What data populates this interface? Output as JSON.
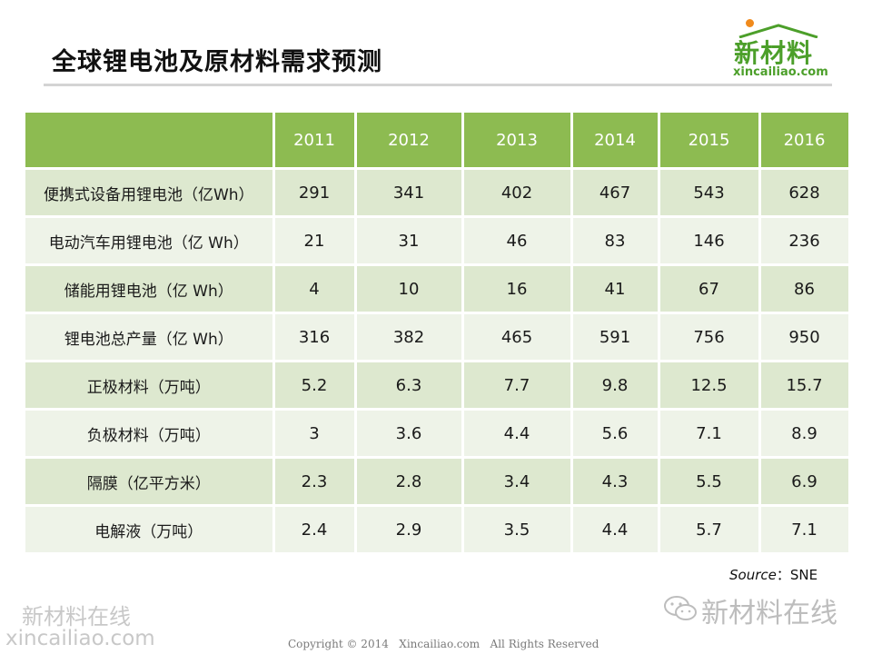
{
  "header": {
    "title": "全球锂电池及原材料需求预测"
  },
  "logo": {
    "text_cn": "新材料",
    "text_en": "xincailiao.com"
  },
  "table": {
    "columns": [
      "",
      "2011",
      "2012",
      "2013",
      "2014",
      "2015",
      "2016"
    ],
    "rows": [
      {
        "label": "便携式设备用锂电池（亿Wh）",
        "values": [
          "291",
          "341",
          "402",
          "467",
          "543",
          "628"
        ]
      },
      {
        "label": "电动汽车用锂电池（亿 Wh）",
        "values": [
          "21",
          "31",
          "46",
          "83",
          "146",
          "236"
        ]
      },
      {
        "label": "储能用锂电池（亿 Wh）",
        "values": [
          "4",
          "10",
          "16",
          "41",
          "67",
          "86"
        ]
      },
      {
        "label": "锂电池总产量（亿 Wh）",
        "values": [
          "316",
          "382",
          "465",
          "591",
          "756",
          "950"
        ]
      },
      {
        "label": "正极材料（万吨）",
        "values": [
          "5.2",
          "6.3",
          "7.7",
          "9.8",
          "12.5",
          "15.7"
        ]
      },
      {
        "label": "负极材料（万吨）",
        "values": [
          "3",
          "3.6",
          "4.4",
          "5.6",
          "7.1",
          "8.9"
        ]
      },
      {
        "label": "隔膜（亿平方米）",
        "values": [
          "2.3",
          "2.8",
          "3.4",
          "4.3",
          "5.5",
          "6.9"
        ]
      },
      {
        "label": "电解液（万吨）",
        "values": [
          "2.4",
          "2.9",
          "3.5",
          "4.4",
          "5.7",
          "7.1"
        ]
      }
    ]
  },
  "source": {
    "label": "Source",
    "value": "：SNE"
  },
  "watermarks": {
    "left_cn": "新材料在线",
    "left_en": "xincailiao.com",
    "right_cn": "新材料在线"
  },
  "footer": {
    "copyright": "Copyright © 2014   Xincailiao.com   All Rights Reserved"
  },
  "colors": {
    "header_green": "#8dbb51",
    "row_odd": "#dde8cf",
    "row_even": "#eef3e8",
    "brand_green": "#4c9f2a",
    "brand_orange": "#f08a1c"
  },
  "icons": [
    "logo-roof-icon",
    "wechat-icon"
  ]
}
